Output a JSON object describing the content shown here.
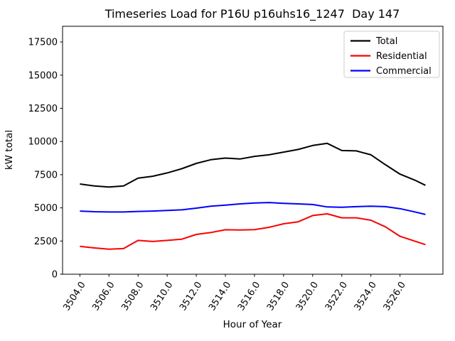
{
  "chart_data": {
    "type": "line",
    "title": "Timeseries Load for P16U p16uhs16_1247  Day 147",
    "xlabel": "Hour of Year",
    "ylabel": "kW total",
    "legend_position": "upper right",
    "grid": false,
    "background_color": "#ffffff",
    "xlim": [
      3502.81,
      3528.95
    ],
    "ylim": [
      0,
      18680
    ],
    "xticks": [
      3504,
      3506,
      3508,
      3510,
      3512,
      3514,
      3516,
      3518,
      3520,
      3522,
      3524,
      3526
    ],
    "xtick_labels": [
      "3504.0",
      "3506.0",
      "3508.0",
      "3510.0",
      "3512.0",
      "3514.0",
      "3516.0",
      "3518.0",
      "3520.0",
      "3522.0",
      "3524.0",
      "3526.0"
    ],
    "yticks": [
      0,
      2500,
      5000,
      7500,
      10000,
      12500,
      15000,
      17500
    ],
    "ytick_labels": [
      "0",
      "2500",
      "5000",
      "7500",
      "10000",
      "12500",
      "15000",
      "17500"
    ],
    "x": [
      3504,
      3505,
      3506,
      3507,
      3508,
      3509,
      3510,
      3511,
      3512,
      3513,
      3514,
      3515,
      3516,
      3517,
      3518,
      3519,
      3520,
      3521,
      3522,
      3523,
      3524,
      3525,
      3526,
      3527,
      3527.75
    ],
    "series": [
      {
        "name": "Total",
        "color": "#000000",
        "values": [
          6800,
          6650,
          6570,
          6650,
          7240,
          7380,
          7630,
          7950,
          8350,
          8630,
          8750,
          8680,
          8880,
          9000,
          9200,
          9400,
          9700,
          9860,
          9320,
          9290,
          9000,
          8250,
          7540,
          7100,
          6700
        ]
      },
      {
        "name": "Residential",
        "color": "#ff0000",
        "values": [
          2100,
          1980,
          1890,
          1930,
          2550,
          2470,
          2550,
          2640,
          3000,
          3140,
          3350,
          3330,
          3360,
          3530,
          3800,
          3950,
          4420,
          4550,
          4250,
          4250,
          4070,
          3570,
          2860,
          2500,
          2230
        ]
      },
      {
        "name": "Commercial",
        "color": "#0000ff",
        "values": [
          4760,
          4710,
          4690,
          4690,
          4730,
          4760,
          4800,
          4850,
          4980,
          5120,
          5210,
          5300,
          5370,
          5400,
          5340,
          5300,
          5250,
          5070,
          5050,
          5090,
          5130,
          5090,
          4940,
          4700,
          4500
        ]
      }
    ]
  }
}
